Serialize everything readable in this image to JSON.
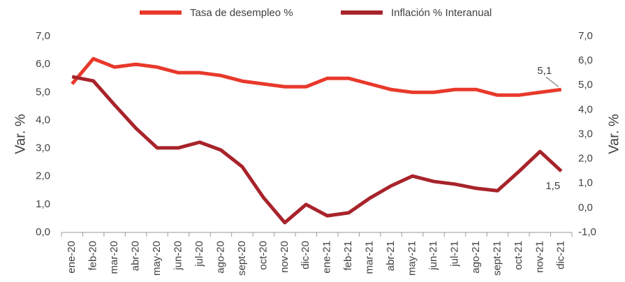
{
  "chart_data": {
    "type": "line",
    "categories": [
      "ene-20",
      "feb-20",
      "mar-20",
      "abr-20",
      "may-20",
      "jun-20",
      "jul-20",
      "ago-20",
      "sept-20",
      "oct-20",
      "nov-20",
      "dic-20",
      "ene-21",
      "feb-21",
      "mar-21",
      "abr-21",
      "may-21",
      "jun-21",
      "jul-21",
      "ago-21",
      "sept-21",
      "oct-21",
      "nov-21",
      "dic-21"
    ],
    "series": [
      {
        "name": "Tasa de desempleo %",
        "color": "#e8392b",
        "axis": "y",
        "values": [
          5.3,
          6.2,
          5.9,
          6.0,
          5.9,
          5.7,
          5.7,
          5.6,
          5.4,
          5.3,
          5.2,
          5.2,
          5.5,
          5.5,
          5.3,
          5.1,
          5.0,
          5.0,
          5.1,
          5.1,
          4.9,
          4.9,
          5.0,
          5.1
        ],
        "value_labels": [
          null,
          null,
          null,
          null,
          null,
          null,
          null,
          null,
          null,
          null,
          null,
          null,
          null,
          null,
          null,
          null,
          null,
          null,
          null,
          null,
          null,
          null,
          null,
          "5,1"
        ]
      },
      {
        "name": "Inflación % Interanual",
        "color": "#a8232b",
        "axis": "y2",
        "values": [
          5.35,
          5.18,
          4.2,
          3.25,
          2.45,
          2.45,
          2.68,
          2.36,
          1.68,
          0.42,
          -0.6,
          0.14,
          -0.32,
          -0.2,
          0.4,
          0.9,
          1.3,
          1.08,
          0.97,
          0.8,
          0.7,
          1.48,
          2.3,
          1.5
        ],
        "value_labels": [
          null,
          null,
          null,
          null,
          null,
          null,
          null,
          null,
          null,
          null,
          null,
          null,
          null,
          null,
          null,
          null,
          null,
          null,
          null,
          null,
          null,
          null,
          null,
          "1,5"
        ]
      }
    ],
    "ylabel": "Var. %",
    "y2label": "Var. %",
    "ylim": [
      0,
      7
    ],
    "yticks": [
      {
        "value": 0,
        "label": "0,0"
      },
      {
        "value": 1,
        "label": "1,0"
      },
      {
        "value": 2,
        "label": "2,0"
      },
      {
        "value": 3,
        "label": "3,0"
      },
      {
        "value": 4,
        "label": "4,0"
      },
      {
        "value": 5,
        "label": "5,0"
      },
      {
        "value": 6,
        "label": "6,0"
      },
      {
        "value": 7,
        "label": "7,0"
      }
    ],
    "y2lim": [
      -1,
      7
    ],
    "y2ticks": [
      {
        "value": -1,
        "label": "-1,0"
      },
      {
        "value": 0,
        "label": "0,0"
      },
      {
        "value": 1,
        "label": "1,0"
      },
      {
        "value": 2,
        "label": "2,0"
      },
      {
        "value": 3,
        "label": "3,0"
      },
      {
        "value": 4,
        "label": "4,0"
      },
      {
        "value": 5,
        "label": "5,0"
      },
      {
        "value": 6,
        "label": "6,0"
      },
      {
        "value": 7,
        "label": "7,0"
      }
    ],
    "legend": "top",
    "grid": false
  }
}
